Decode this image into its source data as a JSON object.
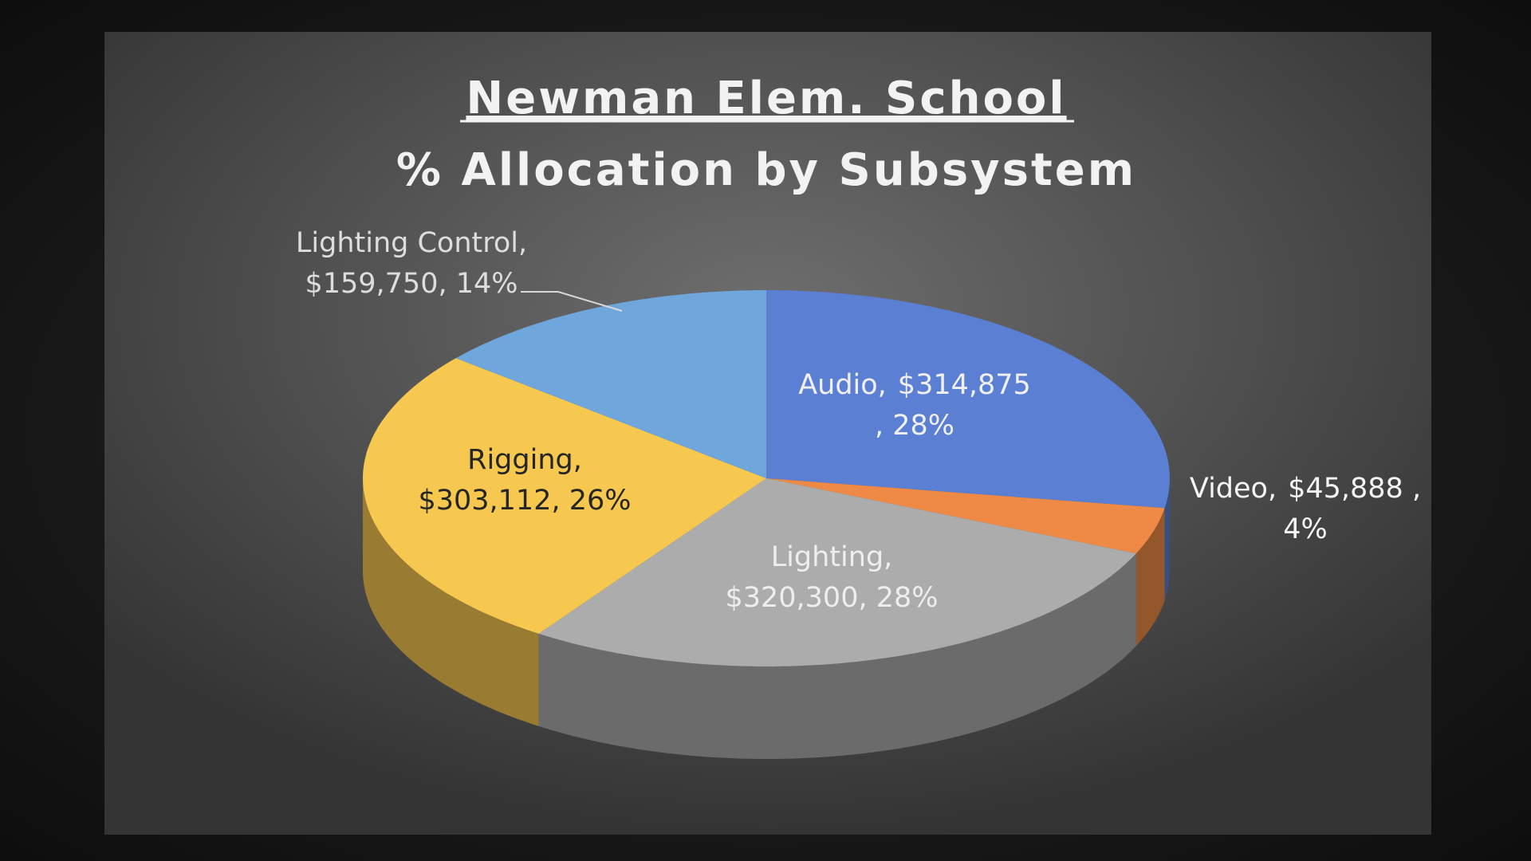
{
  "chart_data": {
    "type": "pie",
    "title": "Newman Elem. School",
    "subtitle": "% Allocation by Subsystem",
    "categories": [
      "Audio,",
      "Video,",
      "Lighting,",
      "Rigging,",
      "Lighting Control,"
    ],
    "values": [
      314875,
      45888,
      320300,
      303112,
      159750
    ],
    "value_labels": [
      "$314,875",
      "$45,888 ,",
      "$320,300",
      "$303,112",
      "$159,750"
    ],
    "percents": [
      28,
      4,
      28,
      26,
      14
    ],
    "percent_labels": [
      ", 28%",
      "4%",
      ", 28%",
      ", 26%",
      ", 14%"
    ],
    "colors": [
      "#5b7fd2",
      "#ee8a45",
      "#acacac",
      "#f6c850",
      "#6fa6dc"
    ],
    "three_d": true
  }
}
